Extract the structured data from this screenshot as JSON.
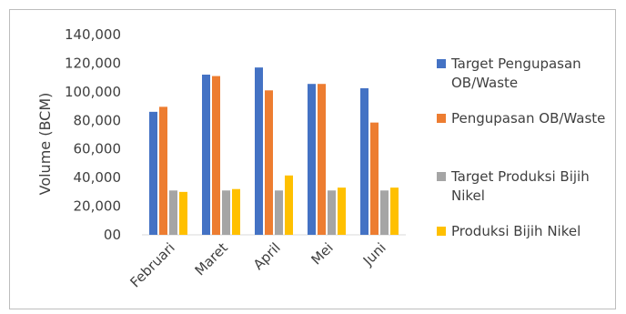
{
  "chart_data": {
    "type": "bar",
    "categories": [
      "Februari",
      "Maret",
      "April",
      "Mei",
      "Juni"
    ],
    "series": [
      {
        "name": "Target Pengupasan OB/Waste",
        "color": "#4472c4",
        "values": [
          86000,
          112000,
          117000,
          105500,
          102500
        ]
      },
      {
        "name": "Pengupasan OB/Waste",
        "color": "#ed7d31",
        "values": [
          89500,
          111000,
          101000,
          105500,
          78500
        ]
      },
      {
        "name": "Target Produksi Bijih Nikel",
        "color": "#a5a5a5",
        "values": [
          31000,
          31000,
          31000,
          31000,
          31000
        ]
      },
      {
        "name": "Produksi Bijih Nikel",
        "color": "#ffc000",
        "values": [
          30000,
          32000,
          41500,
          33000,
          33000
        ]
      }
    ],
    "ylabel": "Volume (BCM)",
    "ylim": [
      0,
      140000
    ],
    "yticks": [
      0,
      20000,
      40000,
      60000,
      80000,
      100000,
      120000,
      140000
    ],
    "ytick_labels": [
      "00",
      "20,000",
      "40,000",
      "60,000",
      "80,000",
      "100,000",
      "120,000",
      "140,000"
    ],
    "grid": false,
    "legend_position": "right"
  },
  "legend_lines": [
    [
      "Target Pengupasan",
      "OB/Waste"
    ],
    [
      "Pengupasan OB/Waste"
    ],
    [
      "Target Produksi Bijih",
      "Nikel"
    ],
    [
      "Produksi Bijih Nikel"
    ]
  ]
}
